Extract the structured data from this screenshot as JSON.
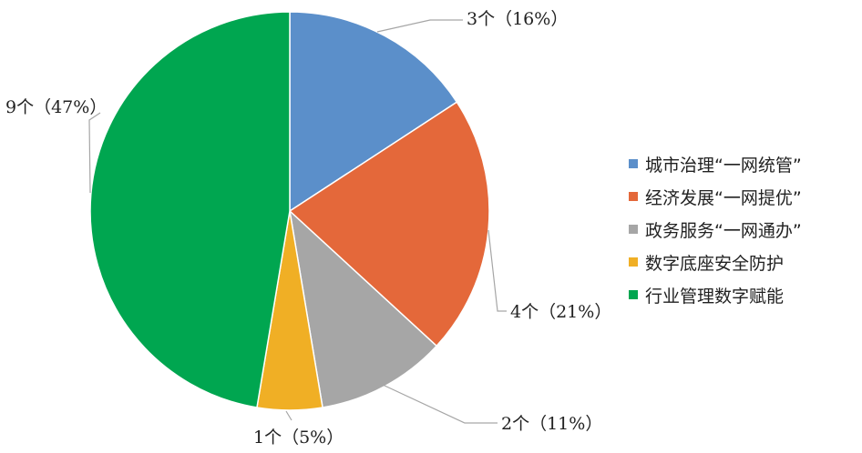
{
  "chart_data": {
    "type": "pie",
    "categories": [
      "城市治理“一网统管”",
      "经济发展“一网提优”",
      "政务服务“一网通办”",
      "数字底座安全防护",
      "行业管理数字赋能"
    ],
    "values": [
      3,
      4,
      2,
      1,
      9
    ],
    "percentages": [
      16,
      21,
      11,
      5,
      47
    ],
    "data_labels": [
      "3个（16%）",
      "4个（21%）",
      "2个（11%）",
      "1个（5%）",
      "9个（47%）"
    ],
    "colors": [
      "#5b8fca",
      "#e4683a",
      "#a6a6a6",
      "#f0af25",
      "#00a650"
    ],
    "start_angle": "12 o'clock",
    "direction": "clockwise",
    "legend_position": "right"
  }
}
